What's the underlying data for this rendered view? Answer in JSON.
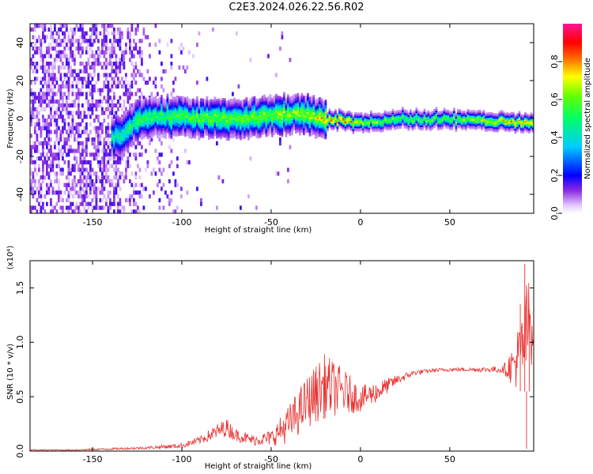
{
  "title": "C2E3.2024.026.22.56.R02",
  "chart_data": [
    {
      "type": "heatmap",
      "xlabel": "Height of straight line (km)",
      "ylabel": "Frequency (Hz)",
      "xlim": [
        -185,
        97
      ],
      "ylim": [
        -50,
        50
      ],
      "xticks": [
        -150,
        -100,
        -50,
        0,
        50
      ],
      "yticks": [
        -40,
        -20,
        0,
        20,
        40
      ],
      "colorbar": {
        "label": "Normalized spectral amplitude",
        "range": [
          0,
          1
        ],
        "ticks": [
          "0.0",
          "0.2",
          "0.4",
          "0.6",
          "0.8"
        ],
        "colors": [
          "#ffffff",
          "#8a2be2",
          "#0000ff",
          "#00ffff",
          "#00ff00",
          "#ffff00",
          "#ff0000",
          "#ff00ff"
        ]
      },
      "ridge": {
        "description_points_x": [
          -135,
          -125,
          -110,
          -90,
          -70,
          -50,
          -30,
          -20,
          -10,
          0,
          20,
          50,
          80,
          95
        ],
        "freq_center": [
          -9,
          0,
          2,
          1,
          0,
          2,
          3,
          0,
          0,
          -2,
          0,
          0,
          -1,
          -2
        ],
        "peak_amplitude": [
          0.4,
          0.5,
          0.5,
          0.55,
          0.55,
          0.6,
          0.6,
          0.75,
          0.85,
          0.6,
          0.55,
          0.55,
          0.7,
          0.75
        ]
      }
    },
    {
      "type": "line",
      "xlabel": "Height of straight line (km)",
      "ylabel": "SNR (10 * v/v)",
      "yscale_label": "(x10⁴)",
      "xlim": [
        -185,
        97
      ],
      "ylim": [
        0,
        1.75
      ],
      "xticks": [
        -150,
        -100,
        -50,
        0,
        50
      ],
      "yticks": [
        "0.0",
        "0.5",
        "1.0",
        "1.5"
      ],
      "color": "#e8302e",
      "series": [
        {
          "x": [
            -185,
            -160,
            -140,
            -120,
            -100,
            -90,
            -80,
            -75,
            -70,
            -60,
            -50,
            -40,
            -30,
            -20,
            -10,
            0,
            10,
            20,
            30,
            40,
            50,
            60,
            70,
            80,
            85,
            90,
            93,
            95,
            97
          ],
          "y": [
            0.01,
            0.01,
            0.02,
            0.03,
            0.05,
            0.1,
            0.18,
            0.22,
            0.15,
            0.1,
            0.12,
            0.25,
            0.45,
            0.6,
            0.55,
            0.48,
            0.55,
            0.65,
            0.72,
            0.74,
            0.75,
            0.75,
            0.75,
            0.75,
            0.78,
            0.9,
            1.1,
            1.2,
            1.1
          ],
          "noise": [
            0.005,
            0.005,
            0.008,
            0.01,
            0.02,
            0.03,
            0.06,
            0.07,
            0.05,
            0.04,
            0.06,
            0.15,
            0.2,
            0.25,
            0.18,
            0.1,
            0.08,
            0.04,
            0.02,
            0.015,
            0.015,
            0.015,
            0.02,
            0.03,
            0.15,
            0.3,
            0.4,
            0.35,
            0.25
          ]
        }
      ]
    }
  ]
}
